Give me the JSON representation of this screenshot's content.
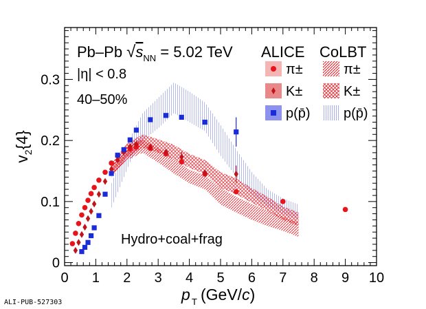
{
  "chart_data": {
    "type": "scatter",
    "xlabel": "p_T (GeV/c)",
    "ylabel": "v_2{4}",
    "xlim": [
      0,
      10
    ],
    "ylim": [
      -0.005,
      0.385
    ],
    "xticks": [
      "0",
      "1",
      "2",
      "3",
      "4",
      "5",
      "6",
      "7",
      "8",
      "9",
      "10"
    ],
    "yticks": [
      "0",
      "0.1",
      "0.2",
      "0.3"
    ],
    "system_label": "Pb–Pb √s_NN = 5.02 TeV",
    "eta_label": "|η| < 0.8",
    "centrality_label": "40–50%",
    "model_label": "Hydro+coal+frag",
    "legend": {
      "data_header": "ALICE",
      "model_header": "CoLBT",
      "entries": [
        "π±",
        "K±",
        "p(p̄)"
      ],
      "placement": "top-right"
    },
    "watermark": "ALI-PUB-527303",
    "series": [
      {
        "name": "π±",
        "marker": "circle",
        "color": "#e8141c",
        "points": [
          [
            0.25,
            0.031
          ],
          [
            0.35,
            0.048
          ],
          [
            0.45,
            0.064
          ],
          [
            0.55,
            0.078
          ],
          [
            0.65,
            0.09
          ],
          [
            0.75,
            0.102
          ],
          [
            0.85,
            0.113
          ],
          [
            0.95,
            0.123
          ],
          [
            1.1,
            0.135
          ],
          [
            1.3,
            0.148
          ],
          [
            1.5,
            0.163
          ],
          [
            1.7,
            0.175
          ],
          [
            1.9,
            0.182
          ],
          [
            2.1,
            0.186
          ],
          [
            2.3,
            0.189
          ],
          [
            2.75,
            0.187
          ],
          [
            3.25,
            0.178
          ],
          [
            3.75,
            0.165
          ],
          [
            4.5,
            0.145
          ],
          [
            5.5,
            0.116
          ],
          [
            7.0,
            0.1
          ],
          [
            9.0,
            0.087
          ]
        ]
      },
      {
        "name": "K±",
        "marker": "diamond",
        "color": "#c0141c",
        "points": [
          [
            0.35,
            0.02
          ],
          [
            0.45,
            0.033
          ],
          [
            0.55,
            0.046
          ],
          [
            0.65,
            0.058
          ],
          [
            0.75,
            0.072
          ],
          [
            0.85,
            0.084
          ],
          [
            0.95,
            0.096
          ],
          [
            1.1,
            0.112
          ],
          [
            1.3,
            0.133
          ],
          [
            1.5,
            0.153
          ],
          [
            1.7,
            0.168
          ],
          [
            1.9,
            0.181
          ],
          [
            2.1,
            0.19
          ],
          [
            2.3,
            0.194
          ],
          [
            2.75,
            0.189
          ],
          [
            3.25,
            0.181
          ],
          [
            3.75,
            0.173
          ],
          [
            4.5,
            0.147
          ],
          [
            5.5,
            0.145
          ]
        ]
      },
      {
        "name": "p(p̄)",
        "marker": "square",
        "color": "#1a2bd8",
        "points": [
          [
            0.55,
            0.018
          ],
          [
            0.65,
            0.025
          ],
          [
            0.75,
            0.033
          ],
          [
            0.85,
            0.044
          ],
          [
            0.95,
            0.057
          ],
          [
            1.1,
            0.077
          ],
          [
            1.3,
            0.112
          ],
          [
            1.5,
            0.146
          ],
          [
            1.7,
            0.176
          ],
          [
            1.9,
            0.185
          ],
          [
            2.1,
            0.201
          ],
          [
            2.3,
            0.217
          ],
          [
            2.75,
            0.234
          ],
          [
            3.25,
            0.241
          ],
          [
            3.75,
            0.238
          ],
          [
            4.5,
            0.23
          ],
          [
            5.5,
            0.214
          ]
        ]
      }
    ],
    "model_bands": [
      {
        "name": "π±",
        "color": "#e8141c",
        "x": [
          1.5,
          2.0,
          2.5,
          3.0,
          3.5,
          4.0,
          4.5,
          5.0,
          5.5,
          6.0,
          6.5,
          7.0,
          7.5
        ],
        "low": [
          0.14,
          0.168,
          0.18,
          0.164,
          0.146,
          0.13,
          0.12,
          0.095,
          0.082,
          0.07,
          0.06,
          0.052,
          0.042
        ],
        "high": [
          0.16,
          0.192,
          0.202,
          0.188,
          0.17,
          0.152,
          0.143,
          0.122,
          0.108,
          0.096,
          0.085,
          0.075,
          0.065
        ]
      },
      {
        "name": "K±",
        "color": "#e8141c",
        "x": [
          1.5,
          2.0,
          2.5,
          3.0,
          3.5,
          4.0,
          4.5,
          5.0,
          5.5,
          6.0,
          6.5,
          7.0,
          7.5
        ],
        "low": [
          0.14,
          0.172,
          0.188,
          0.18,
          0.17,
          0.155,
          0.145,
          0.122,
          0.112,
          0.098,
          0.085,
          0.07,
          0.06
        ],
        "high": [
          0.162,
          0.195,
          0.21,
          0.202,
          0.193,
          0.178,
          0.168,
          0.148,
          0.138,
          0.122,
          0.108,
          0.092,
          0.082
        ]
      },
      {
        "name": "p(p̄)",
        "color": "#1a2bd8",
        "x": [
          1.5,
          1.8,
          2.1,
          2.5,
          3.0,
          3.5,
          4.0,
          4.5,
          5.0,
          5.5,
          6.0,
          6.5,
          7.0,
          7.5
        ],
        "low": [
          0.09,
          0.128,
          0.165,
          0.2,
          0.22,
          0.245,
          0.23,
          0.215,
          0.175,
          0.14,
          0.112,
          0.092,
          0.08,
          0.07
        ],
        "high": [
          0.13,
          0.168,
          0.205,
          0.245,
          0.27,
          0.295,
          0.28,
          0.262,
          0.225,
          0.185,
          0.148,
          0.12,
          0.105,
          0.095
        ]
      }
    ],
    "error_bars": [
      {
        "series": "p(p̄)",
        "x": 5.5,
        "y": 0.214,
        "low": 0.19,
        "high": 0.238
      },
      {
        "series": "K±",
        "x": 5.5,
        "y": 0.145,
        "low": 0.131,
        "high": 0.159
      },
      {
        "series": "K±",
        "x": 3.75,
        "y": 0.173,
        "low": 0.165,
        "high": 0.181
      }
    ]
  }
}
